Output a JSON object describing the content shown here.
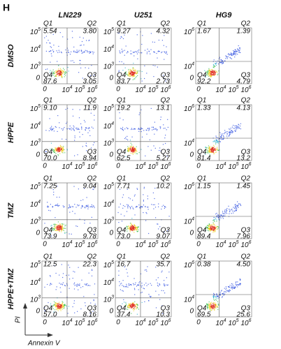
{
  "panel": "H",
  "columns": [
    "LN229",
    "U251",
    "HG9"
  ],
  "rows": [
    "DMSO",
    "HPPE",
    "TMZ",
    "HPPE+TMZ"
  ],
  "quadrant_names": [
    "Q1",
    "Q2",
    "Q3",
    "Q4"
  ],
  "tick_base": "10",
  "zero_tick": "0",
  "x_exponents": [
    "4",
    "5",
    "6"
  ],
  "y_exponents": [
    [
      "3",
      "4",
      "5"
    ],
    [
      "3",
      "4",
      "5"
    ],
    [
      "4",
      "6"
    ]
  ],
  "plots": [
    [
      {
        "Q1": "5.54",
        "Q2": "3.80",
        "Q3": "3.05",
        "Q4": "87.6"
      },
      {
        "Q1": "9.27",
        "Q2": "4.32",
        "Q3": "2.73",
        "Q4": "83.7"
      },
      {
        "Q1": "1.67",
        "Q2": "1.39",
        "Q3": "4.79",
        "Q4": "92.2"
      }
    ],
    [
      {
        "Q1": "9.10",
        "Q2": "11.9",
        "Q3": "8.94",
        "Q4": "70.0"
      },
      {
        "Q1": "19.2",
        "Q2": "13.1",
        "Q3": "5.27",
        "Q4": "62.5"
      },
      {
        "Q1": "1.33",
        "Q2": "4.13",
        "Q3": "13.2",
        "Q4": "81.4"
      }
    ],
    [
      {
        "Q1": "7.25",
        "Q2": "9.04",
        "Q3": "9.78",
        "Q4": "73.9"
      },
      {
        "Q1": "7.71",
        "Q2": "10.2",
        "Q3": "9.07",
        "Q4": "73.0"
      },
      {
        "Q1": "1.15",
        "Q2": "1.45",
        "Q3": "7.96",
        "Q4": "89.4"
      }
    ],
    [
      {
        "Q1": "12.5",
        "Q2": "22.3",
        "Q3": "8.16",
        "Q4": "57.0"
      },
      {
        "Q1": "16.7",
        "Q2": "35.7",
        "Q3": "10.3",
        "Q4": "37.4"
      },
      {
        "Q1": "0.38",
        "Q2": "4.50",
        "Q3": "25.6",
        "Q4": "69.5"
      }
    ]
  ],
  "y_axis_label": "PI",
  "x_axis_label": "Annexin V"
}
